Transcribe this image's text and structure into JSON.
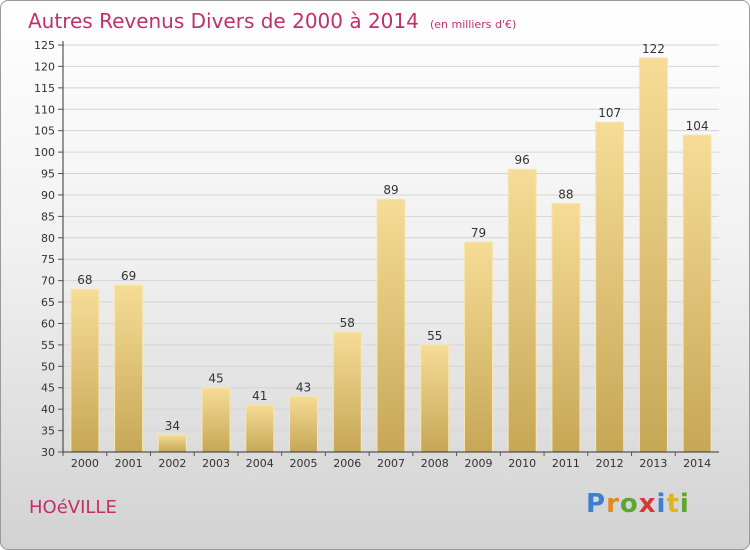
{
  "title": "Autres Revenus Divers de 2000 à 2014",
  "subtitle": "(en milliers d'€)",
  "location": "HOéVILLE",
  "logo": {
    "letters": [
      "P",
      "r",
      "o",
      "x",
      "i",
      "t",
      "i"
    ],
    "colors": [
      "#3d7fd0",
      "#e48a1c",
      "#5aa832",
      "#d43a3a",
      "#3d7fd0",
      "#e4b21c",
      "#5aa832"
    ]
  },
  "colors": {
    "accent": "#c0306a",
    "bar_top": "#f6dc96",
    "bar_bottom": "#c6a756"
  },
  "chart_data": {
    "type": "bar",
    "categories": [
      "2000",
      "2001",
      "2002",
      "2003",
      "2004",
      "2005",
      "2006",
      "2007",
      "2008",
      "2009",
      "2010",
      "2011",
      "2012",
      "2013",
      "2014"
    ],
    "values": [
      68,
      69,
      34,
      45,
      41,
      43,
      58,
      89,
      55,
      79,
      96,
      88,
      107,
      122,
      104
    ],
    "yticks": [
      30,
      35,
      40,
      45,
      50,
      55,
      60,
      65,
      70,
      75,
      80,
      85,
      90,
      95,
      100,
      105,
      110,
      115,
      120,
      125
    ],
    "ylim": [
      30,
      125
    ],
    "grid": true,
    "legend": "none"
  }
}
